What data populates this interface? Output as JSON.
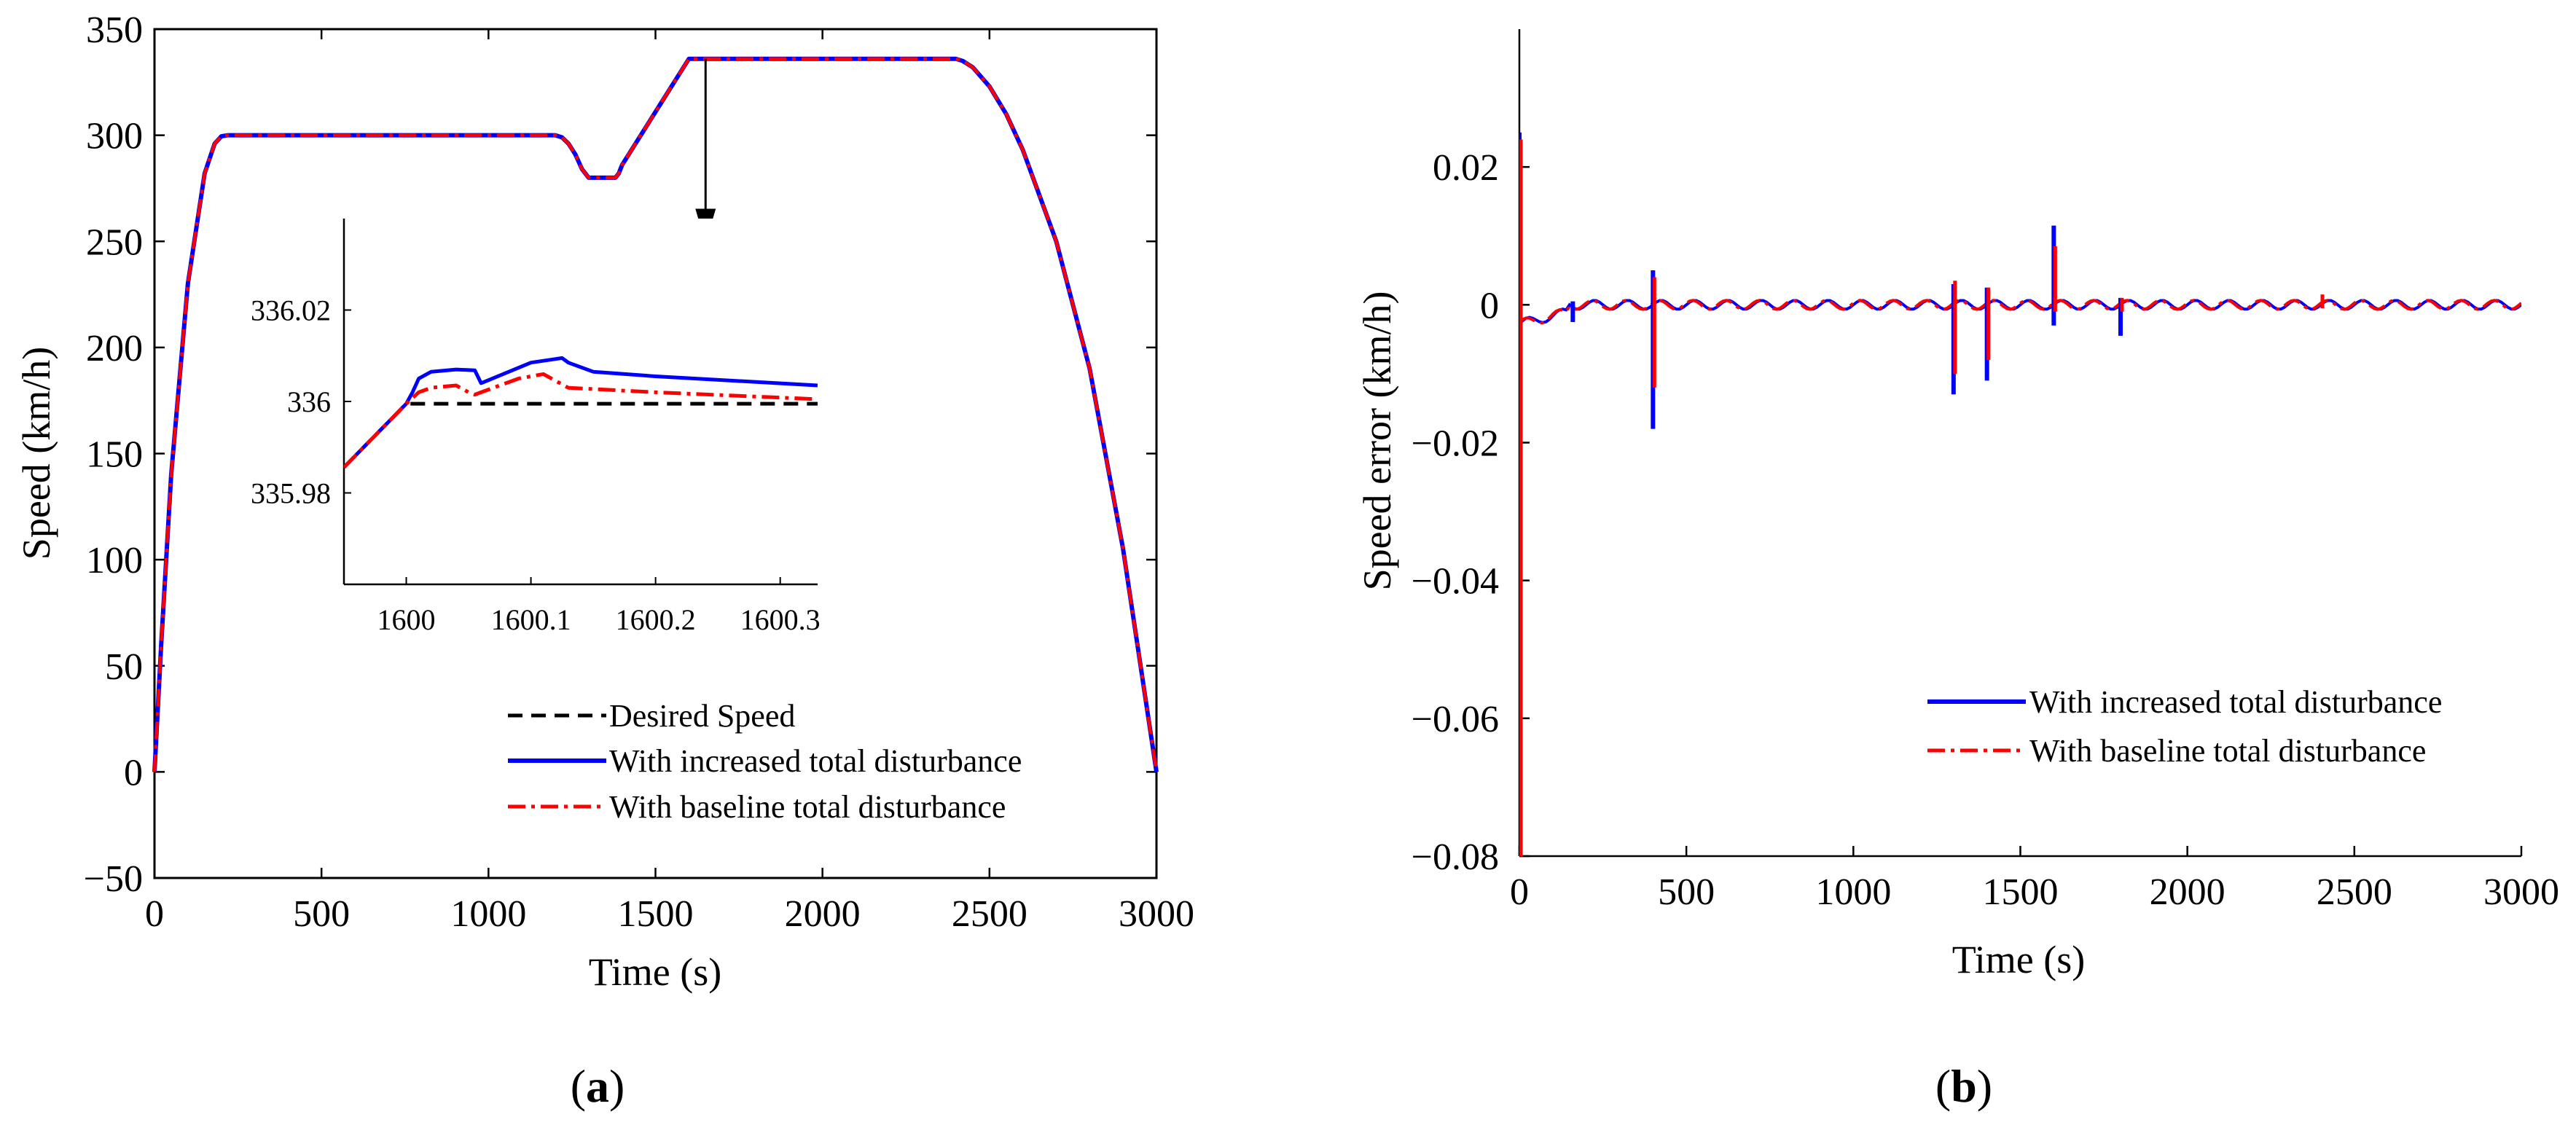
{
  "chart_data": [
    {
      "id": "a",
      "type": "line",
      "caption_open": "(",
      "caption_letter": "a",
      "caption_close": ")",
      "xlabel": "Time (s)",
      "ylabel": "Speed (km/h)",
      "xlim": [
        0,
        3000
      ],
      "ylim": [
        -50,
        350
      ],
      "xticks": [
        0,
        500,
        1000,
        1500,
        2000,
        2500,
        3000
      ],
      "yticks": [
        -50,
        0,
        50,
        100,
        150,
        200,
        250,
        300,
        350
      ],
      "ytick_labels": [
        "−50",
        "0",
        "50",
        "100",
        "150",
        "200",
        "250",
        "300",
        "350"
      ],
      "legend": [
        "Desired Speed",
        "With increased total disturbance",
        "With baseline total disturbance"
      ],
      "series": [
        {
          "name": "With increased total disturbance",
          "color": "#0000ff",
          "style": "solid",
          "x": [
            0,
            20,
            50,
            100,
            150,
            180,
            200,
            220,
            1200,
            1220,
            1240,
            1260,
            1280,
            1300,
            1310,
            1380,
            1390,
            1400,
            1600,
            1610,
            1620,
            2400,
            2420,
            2450,
            2500,
            2550,
            2600,
            2700,
            2800,
            2900,
            3000
          ],
          "y": [
            0,
            60,
            140,
            230,
            282,
            296,
            299.5,
            300,
            300,
            299,
            296,
            291,
            284,
            280,
            280,
            280,
            282,
            286,
            336,
            336,
            336,
            336,
            335,
            332,
            323,
            310,
            293,
            250,
            190,
            105,
            0
          ]
        },
        {
          "name": "With baseline total disturbance",
          "color": "#ff0000",
          "style": "dashdot",
          "x": [
            0,
            20,
            50,
            100,
            150,
            180,
            200,
            220,
            1200,
            1220,
            1240,
            1260,
            1280,
            1300,
            1310,
            1380,
            1390,
            1400,
            1600,
            1610,
            1620,
            2400,
            2420,
            2450,
            2500,
            2550,
            2600,
            2700,
            2800,
            2900,
            3000
          ],
          "y": [
            0,
            60,
            140,
            230,
            282,
            296,
            299.5,
            300,
            300,
            299,
            296,
            291,
            284,
            280,
            280,
            280,
            282,
            286,
            336,
            336,
            336,
            336,
            335,
            332,
            323,
            310,
            293,
            250,
            190,
            105,
            0
          ]
        }
      ],
      "annotation": {
        "type": "arrow",
        "from": [
          1650,
          336
        ],
        "to": [
          1650,
          310
        ]
      },
      "inset": {
        "xlim": [
          1599.95,
          1600.33
        ],
        "ylim": [
          335.96,
          336.04
        ],
        "xticks": [
          1600,
          1600.1,
          1600.2,
          1600.3
        ],
        "yticks": [
          335.98,
          336,
          336.02
        ],
        "series": [
          {
            "name": "Desired Speed",
            "color": "#000000",
            "style": "dashed",
            "x": [
              1599.95,
              1600,
              1600.33
            ],
            "y": [
              335.9856,
              335.9995,
              335.9995
            ]
          },
          {
            "name": "With increased total disturbance",
            "color": "#0000ff",
            "style": "solid",
            "x": [
              1599.95,
              1600,
              1600.005,
              1600.01,
              1600.02,
              1600.04,
              1600.055,
              1600.06,
              1600.1,
              1600.125,
              1600.13,
              1600.15,
              1600.2,
              1600.33
            ],
            "y": [
              335.9856,
              335.9995,
              336.002,
              336.005,
              336.0065,
              336.007,
              336.0068,
              336.004,
              336.0085,
              336.0095,
              336.0085,
              336.0065,
              336.0055,
              336.0035
            ]
          },
          {
            "name": "With baseline total disturbance",
            "color": "#ff0000",
            "style": "dashdot",
            "x": [
              1599.95,
              1600,
              1600.01,
              1600.02,
              1600.04,
              1600.05,
              1600.055,
              1600.06,
              1600.09,
              1600.11,
              1600.13,
              1600.2,
              1600.33
            ],
            "y": [
              335.9856,
              335.9995,
              336.002,
              336.003,
              336.0035,
              336.002,
              336.0015,
              336.002,
              336.005,
              336.006,
              336.003,
              336.002,
              336.0005
            ]
          }
        ]
      }
    },
    {
      "id": "b",
      "type": "line",
      "caption_open": "(",
      "caption_letter": "b",
      "caption_close": ")",
      "xlabel": "Time (s)",
      "ylabel": "Speed error (km/h)",
      "xlim": [
        0,
        3000
      ],
      "ylim": [
        -0.08,
        0.04
      ],
      "xticks": [
        0,
        500,
        1000,
        1500,
        2000,
        2500,
        3000
      ],
      "yticks": [
        -0.08,
        -0.06,
        -0.04,
        -0.02,
        0,
        0.02
      ],
      "ytick_labels": [
        "−0.08",
        "−0.06",
        "−0.04",
        "−0.02",
        "0",
        "0.02"
      ],
      "legend": [
        "With increased total disturbance",
        "With baseline total disturbance"
      ],
      "series": [
        {
          "name": "With increased total disturbance",
          "color": "#0000ff",
          "style": "solid",
          "spikes": [
            {
              "x": 0,
              "min": -0.08,
              "max": 0.025
            },
            {
              "x": 160,
              "min": -0.0025,
              "max": 0.0005
            },
            {
              "x": 400,
              "min": -0.018,
              "max": 0.005
            },
            {
              "x": 1300,
              "min": -0.013,
              "max": 0.003
            },
            {
              "x": 1400,
              "min": -0.011,
              "max": 0.0025
            },
            {
              "x": 1600,
              "min": -0.003,
              "max": 0.0115
            },
            {
              "x": 1800,
              "min": -0.0045,
              "max": 0.001
            }
          ]
        },
        {
          "name": "With baseline total disturbance",
          "color": "#ff0000",
          "style": "dashdot",
          "spikes": [
            {
              "x": 0,
              "min": -0.08,
              "max": 0.024
            },
            {
              "x": 400,
              "min": -0.012,
              "max": 0.004
            },
            {
              "x": 1300,
              "min": -0.01,
              "max": 0.0035
            },
            {
              "x": 1400,
              "min": -0.008,
              "max": 0.0025
            },
            {
              "x": 1600,
              "min": -0.001,
              "max": 0.0085
            },
            {
              "x": 1800,
              "min": -0.001,
              "max": 0.001
            },
            {
              "x": 2400,
              "min": -0.0005,
              "max": 0.0015
            }
          ]
        }
      ]
    }
  ]
}
